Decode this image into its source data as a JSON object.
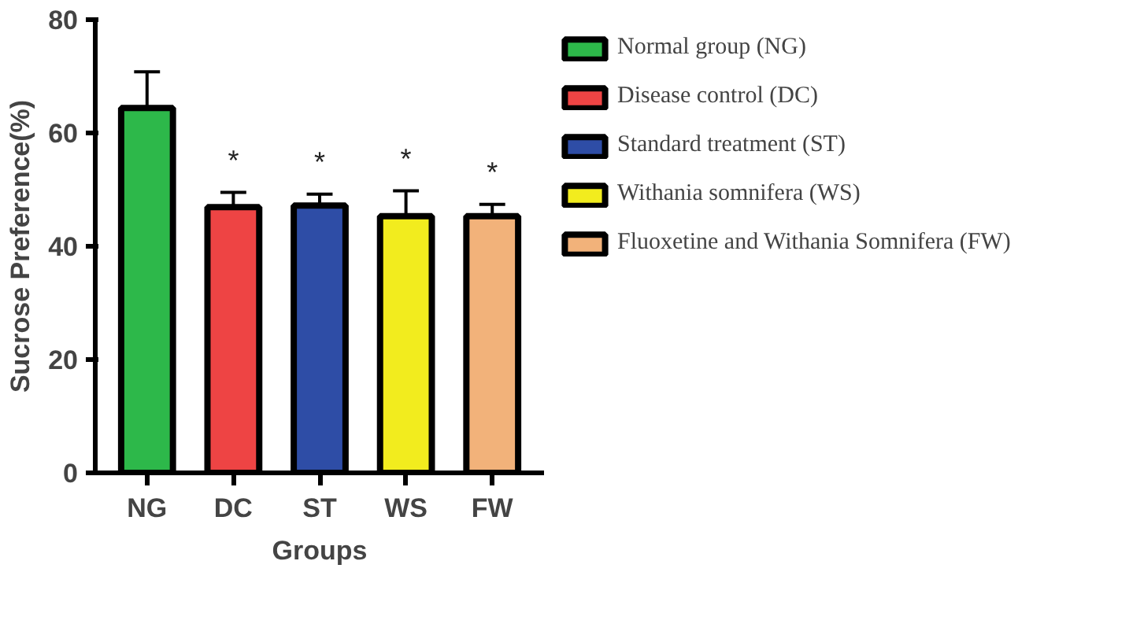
{
  "chart_data": {
    "type": "bar",
    "xlabel": "Groups",
    "ylabel": "Sucrose Preference(%)",
    "categories": [
      "NG",
      "DC",
      "ST",
      "WS",
      "FW"
    ],
    "series": [
      {
        "name": "Normal group (NG)",
        "color": "#2db84a",
        "values": [
          64.4,
          null,
          null,
          null,
          null
        ],
        "errors": [
          [
            64.4,
            70.8
          ],
          null,
          null,
          null,
          null
        ]
      },
      {
        "name": "Disease control (DC)",
        "color": "#ee4444",
        "values": [
          null,
          46.9,
          null,
          null,
          null
        ],
        "errors": [
          null,
          [
            46.9,
            49.5
          ],
          null,
          null,
          null
        ]
      },
      {
        "name": "Standard treatment (ST)",
        "color": "#2e4da6",
        "values": [
          null,
          null,
          47.2,
          null,
          null
        ],
        "errors": [
          null,
          null,
          [
            47.2,
            49.2
          ],
          null,
          null
        ]
      },
      {
        "name": "Withania somnifera (WS)",
        "color": "#f2ec1e",
        "values": [
          null,
          null,
          null,
          45.3,
          null
        ],
        "errors": [
          null,
          null,
          null,
          [
            45.3,
            49.8
          ],
          null
        ]
      },
      {
        "name": "Fluoxetine and Withania Somnifera (FW)",
        "color": "#f2b27a",
        "values": [
          null,
          null,
          null,
          null,
          45.3
        ],
        "errors": [
          null,
          null,
          null,
          null,
          [
            45.3,
            47.4
          ]
        ]
      }
    ],
    "annotations": [
      "*",
      "*",
      "*",
      "*"
    ],
    "ylim": [
      0,
      80
    ],
    "yticks": [
      0,
      20,
      40,
      60,
      80
    ],
    "grid": false,
    "legend": "right"
  }
}
